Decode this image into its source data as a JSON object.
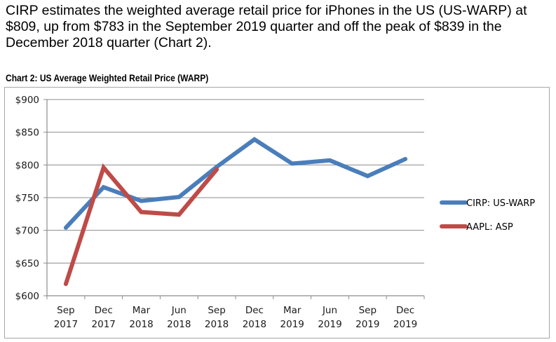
{
  "intro_text": "CIRP estimates the weighted average retail price for iPhones in the US (US-WARP) at $809, up from $783 in the September 2019 quarter and off the peak of $839 in the December 2018 quarter (Chart 2).",
  "chart_data": {
    "type": "line",
    "title": "Chart 2: US Average Weighted Retail Price (WARP)",
    "xlabel": "",
    "ylabel": "",
    "categories": [
      [
        "Sep",
        "2017"
      ],
      [
        "Dec",
        "2017"
      ],
      [
        "Mar",
        "2018"
      ],
      [
        "Jun",
        "2018"
      ],
      [
        "Sep",
        "2018"
      ],
      [
        "Dec",
        "2018"
      ],
      [
        "Mar",
        "2019"
      ],
      [
        "Jun",
        "2019"
      ],
      [
        "Sep",
        "2019"
      ],
      [
        "Dec",
        "2019"
      ]
    ],
    "ylim": [
      600,
      900
    ],
    "yticks": [
      600,
      650,
      700,
      750,
      800,
      850,
      900
    ],
    "ytick_labels": [
      "$600",
      "$650",
      "$700",
      "$750",
      "$800",
      "$850",
      "$900"
    ],
    "grid": true,
    "legend_position": "right",
    "series": [
      {
        "name": "CIRP: US-WARP",
        "color": "#4a7ebb",
        "values": [
          704,
          766,
          745,
          751,
          797,
          839,
          802,
          807,
          783,
          809
        ]
      },
      {
        "name": "AAPL: ASP",
        "color": "#be4b48",
        "values": [
          618,
          796,
          728,
          724,
          793,
          null,
          null,
          null,
          null,
          null
        ]
      }
    ]
  }
}
